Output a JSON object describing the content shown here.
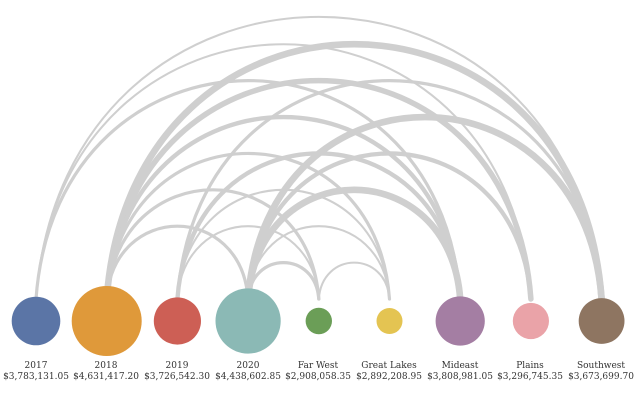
{
  "colors": {
    "arc": "#cfcfcf",
    "background": "#ffffff",
    "label_text": "#333333"
  },
  "nodes": [
    {
      "id": "2017",
      "name": "2017",
      "value_label": "$3,783,131.05",
      "value": 3783131.05,
      "color": "#5b75a6"
    },
    {
      "id": "2018",
      "name": "2018",
      "value_label": "$4,631,417.20",
      "value": 4631417.2,
      "color": "#df993a"
    },
    {
      "id": "2019",
      "name": "2019",
      "value_label": "$3,726,542.30",
      "value": 3726542.3,
      "color": "#cd5f55"
    },
    {
      "id": "2020",
      "name": "2020",
      "value_label": "$4,438,602.85",
      "value": 4438602.85,
      "color": "#8bb9b5"
    },
    {
      "id": "far-west",
      "name": "Far West",
      "value_label": "$2,908,058.35",
      "value": 2908058.35,
      "color": "#6b9e57"
    },
    {
      "id": "great-lakes",
      "name": "Great Lakes",
      "value_label": "$2,892,208.95",
      "value": 2892208.95,
      "color": "#e4c452"
    },
    {
      "id": "mideast",
      "name": "Mideast",
      "value_label": "$3,808,981.05",
      "value": 3808981.05,
      "color": "#a47ea3"
    },
    {
      "id": "plains",
      "name": "Plains",
      "value_label": "$3,296,745.35",
      "value": 3296745.35,
      "color": "#eaa3a8"
    },
    {
      "id": "southwest",
      "name": "Southwest",
      "value_label": "$3,673,699.70",
      "value": 3673699.7,
      "color": "#8e7561"
    }
  ],
  "links": [
    {
      "source": "2017",
      "target": "southwest",
      "weight": 1
    },
    {
      "source": "2017",
      "target": "plains",
      "weight": 1
    },
    {
      "source": "2017",
      "target": "mideast",
      "weight": 2
    },
    {
      "source": "2018",
      "target": "southwest",
      "weight": 5
    },
    {
      "source": "2018",
      "target": "plains",
      "weight": 4
    },
    {
      "source": "2018",
      "target": "mideast",
      "weight": 3
    },
    {
      "source": "2018",
      "target": "great-lakes",
      "weight": 2
    },
    {
      "source": "2018",
      "target": "far-west",
      "weight": 2
    },
    {
      "source": "2018",
      "target": "2020",
      "weight": 2
    },
    {
      "source": "2019",
      "target": "southwest",
      "weight": 2
    },
    {
      "source": "2019",
      "target": "mideast",
      "weight": 3
    },
    {
      "source": "2019",
      "target": "great-lakes",
      "weight": 1
    },
    {
      "source": "2019",
      "target": "far-west",
      "weight": 1
    },
    {
      "source": "2020",
      "target": "southwest",
      "weight": 5
    },
    {
      "source": "2020",
      "target": "plains",
      "weight": 3
    },
    {
      "source": "2020",
      "target": "mideast",
      "weight": 5
    },
    {
      "source": "2020",
      "target": "great-lakes",
      "weight": 1
    },
    {
      "source": "2020",
      "target": "far-west",
      "weight": 2
    },
    {
      "source": "far-west",
      "target": "great-lakes",
      "weight": 1
    }
  ]
}
